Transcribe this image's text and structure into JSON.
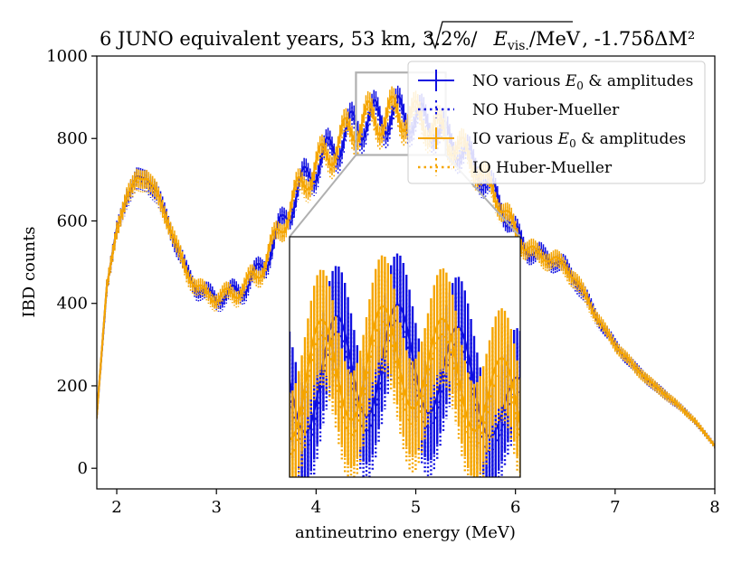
{
  "chart_data": {
    "type": "line",
    "title_parts": {
      "prefix": "6 JUNO equivalent years, 53 km, 3.2%/",
      "sqrt_var": "E",
      "sqrt_sub": "vis.",
      "sqrt_rest": "/MeV",
      "suffix": ", -1.75δΔM²"
    },
    "xlabel": "antineutrino energy (MeV)",
    "ylabel": "IBD counts",
    "xlim": [
      1.8,
      8.0
    ],
    "ylim": [
      -50,
      1000
    ],
    "xticks": [
      2,
      3,
      4,
      5,
      6,
      7,
      8
    ],
    "xtick_labels": [
      "2",
      "3",
      "4",
      "5",
      "6",
      "7",
      "8"
    ],
    "yticks": [
      0,
      200,
      400,
      600,
      800,
      1000
    ],
    "ytick_labels": [
      "0",
      "200",
      "400",
      "600",
      "800",
      "1000"
    ],
    "legend_position": "top-right",
    "colors": {
      "NO": "#1010e0",
      "IO": "#f5a500",
      "axes": "#000000",
      "zoom_box": "#b0b0b0"
    },
    "series": [
      {
        "name": "NO various E0 & amplitudes",
        "legend_label": "NO various ",
        "legend_var": "E",
        "legend_sub": "0",
        "legend_rest": " & amplitudes",
        "color": "#1010e0",
        "style": "solid-errorbar",
        "phase_shift": 0.0
      },
      {
        "name": "NO Huber-Mueller",
        "legend_label": "NO Huber-Mueller",
        "color": "#1010e0",
        "style": "dotted",
        "phase_shift": 0.0
      },
      {
        "name": "IO various E0 & amplitudes",
        "legend_label": "IO various ",
        "legend_var": "E",
        "legend_sub": "0",
        "legend_rest": " & amplitudes",
        "color": "#f5a500",
        "style": "solid-errorbar",
        "phase_shift": 0.5
      },
      {
        "name": "IO Huber-Mueller",
        "legend_label": "IO Huber-Mueller",
        "color": "#f5a500",
        "style": "dotted",
        "phase_shift": 0.5
      }
    ],
    "envelope": {
      "x": [
        1.8,
        1.9,
        2.0,
        2.1,
        2.2,
        2.3,
        2.4,
        2.5,
        2.6,
        2.7,
        2.8,
        2.9,
        3.0,
        3.1,
        3.2,
        3.3,
        3.4,
        3.5,
        3.6,
        3.7,
        3.8,
        3.9,
        4.0,
        4.1,
        4.2,
        4.3,
        4.4,
        4.5,
        4.6,
        4.7,
        4.8,
        4.9,
        5.0,
        5.1,
        5.2,
        5.3,
        5.4,
        5.5,
        5.6,
        5.7,
        5.8,
        5.9,
        6.0,
        6.1,
        6.2,
        6.3,
        6.4,
        6.5,
        6.6,
        6.7,
        6.8,
        6.9,
        7.0,
        7.2,
        7.4,
        7.6,
        7.8,
        8.0
      ],
      "y": [
        130,
        440,
        580,
        660,
        705,
        705,
        670,
        610,
        540,
        480,
        440,
        425,
        415,
        420,
        430,
        445,
        470,
        510,
        560,
        615,
        665,
        705,
        735,
        760,
        785,
        810,
        835,
        845,
        850,
        855,
        860,
        860,
        850,
        840,
        830,
        805,
        785,
        765,
        735,
        700,
        665,
        620,
        575,
        540,
        520,
        515,
        505,
        490,
        460,
        420,
        375,
        335,
        300,
        245,
        200,
        160,
        115,
        55
      ]
    },
    "oscillation": {
      "amplitude_peak": 45,
      "peak_energy": 4.6,
      "width": 1.5,
      "frequency": 4.2
    },
    "inset": {
      "xlim": [
        4.4,
        5.3
      ],
      "ylim": [
        760,
        960
      ]
    }
  }
}
